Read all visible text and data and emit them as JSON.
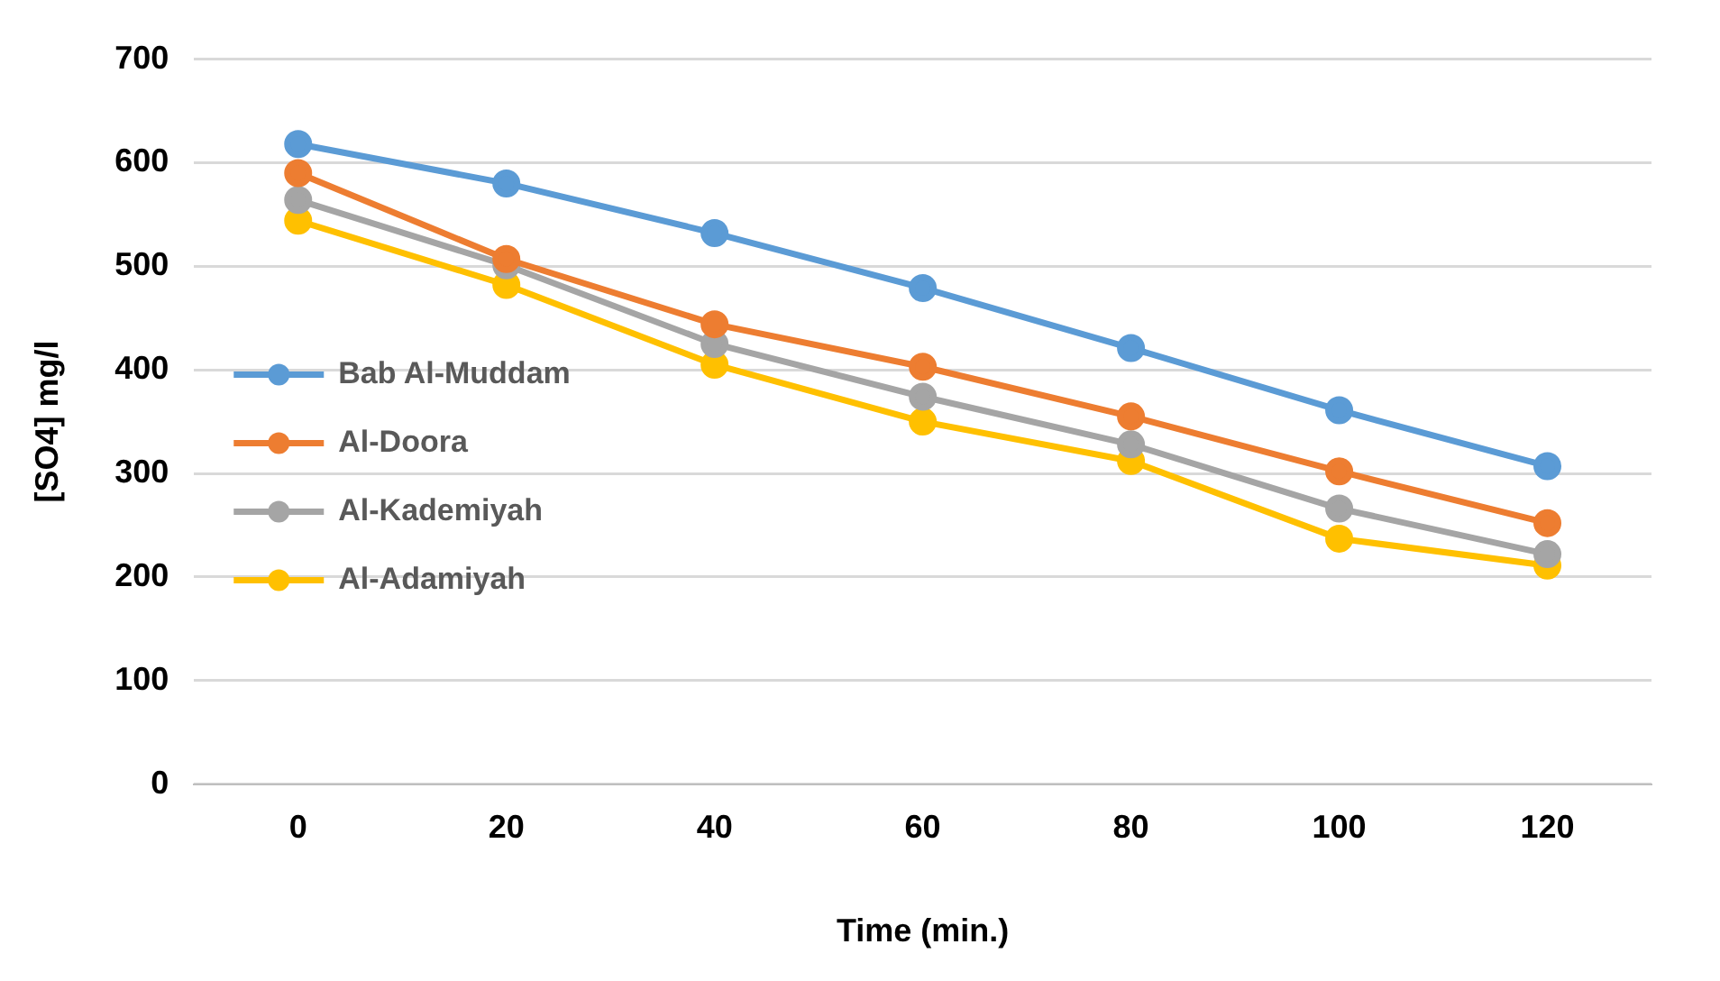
{
  "chart_data": {
    "type": "line",
    "xlabel": "Time (min.)",
    "ylabel": "[SO4] mg/l",
    "categories": [
      "0",
      "20",
      "40",
      "60",
      "80",
      "100",
      "120"
    ],
    "series": [
      {
        "name": "Bab Al-Muddam",
        "color": "#5b9bd5",
        "values": [
          618,
          580,
          532,
          479,
          421,
          361,
          307
        ]
      },
      {
        "name": "Al-Doora",
        "color": "#ed7d31",
        "values": [
          590,
          507,
          444,
          403,
          355,
          302,
          252
        ]
      },
      {
        "name": "Al-Kademiyah",
        "color": "#a5a5a5",
        "values": [
          564,
          501,
          425,
          374,
          328,
          266,
          222
        ]
      },
      {
        "name": "Al-Adamiyah",
        "color": "#ffc000",
        "values": [
          544,
          482,
          405,
          350,
          312,
          237,
          211
        ]
      }
    ],
    "ylim": [
      0,
      700
    ],
    "yticks": [
      0,
      100,
      200,
      300,
      400,
      500,
      600,
      700
    ],
    "grid": "y",
    "legend": "left",
    "marker": "circle",
    "line_style": "solid"
  }
}
